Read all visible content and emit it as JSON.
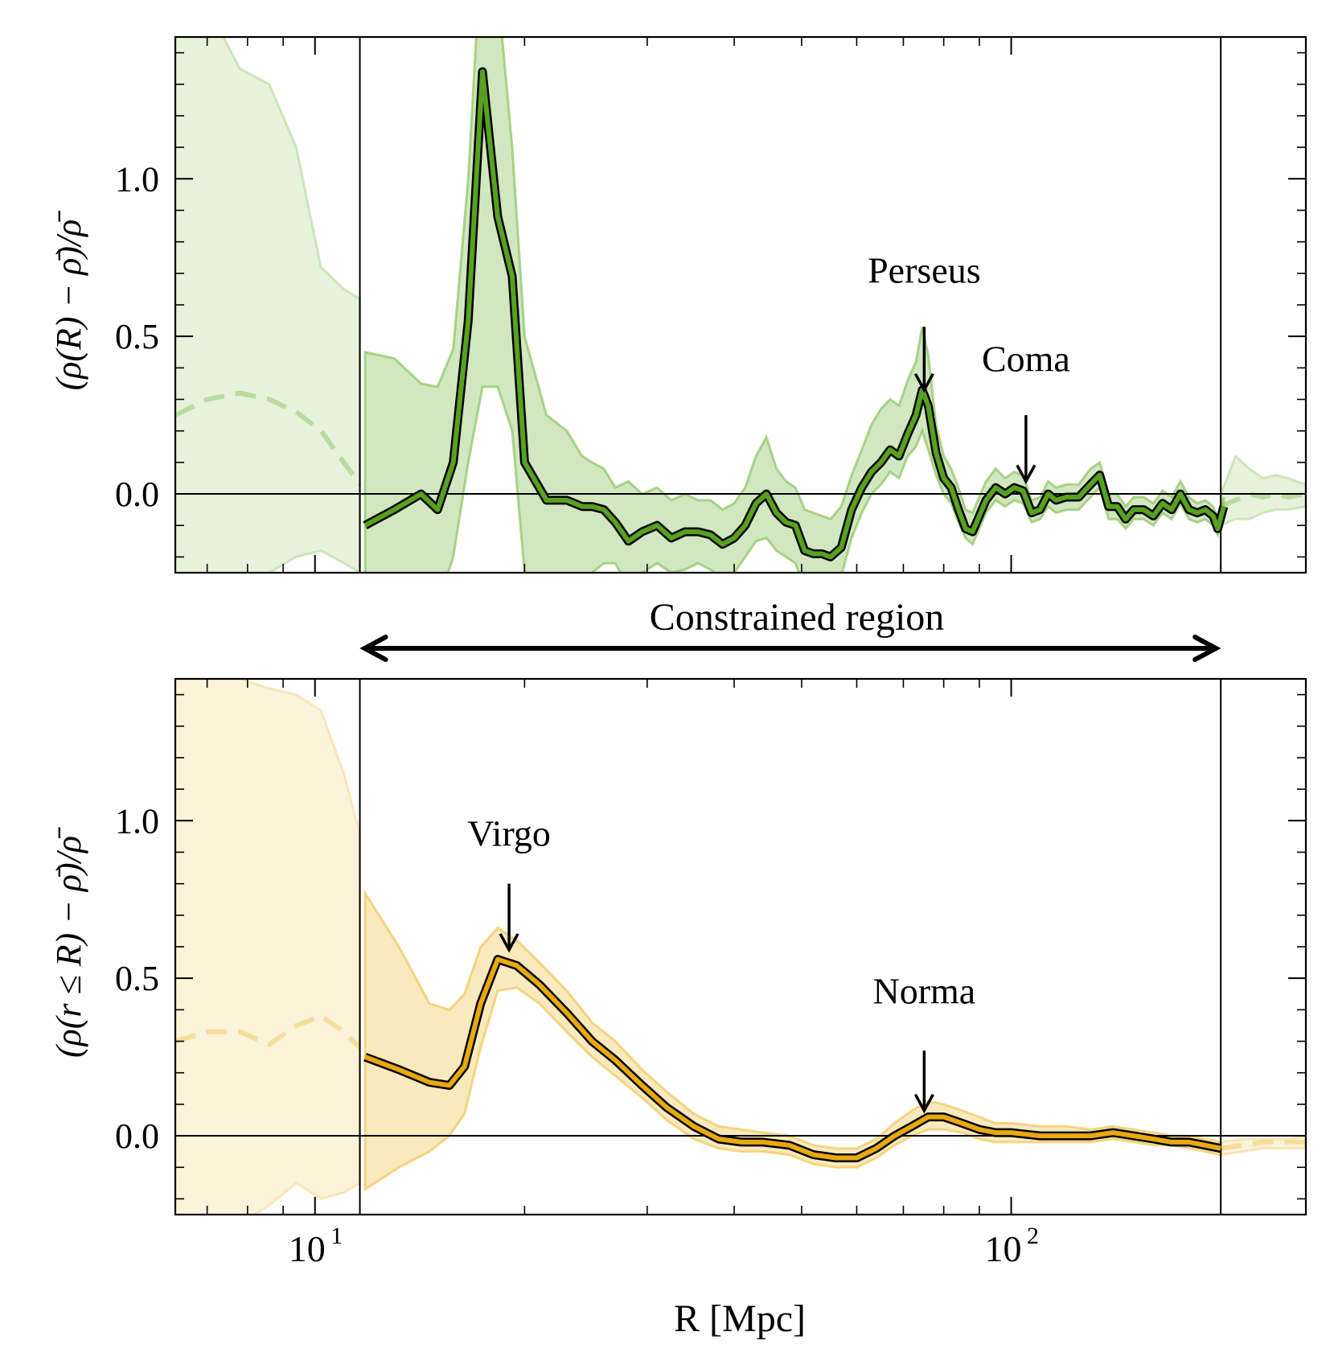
{
  "chart_data": [
    {
      "type": "line",
      "panel": "top",
      "ylabel": "(ρ(R) − ρ̄)/ρ̄",
      "xscale": "log",
      "xlim": [
        6.3,
        265
      ],
      "ylim": [
        -0.25,
        1.45
      ],
      "yticks": [
        0.0,
        0.5,
        1.0
      ],
      "ytick_labels": [
        "0.0",
        "0.5",
        "1.0"
      ],
      "hline": 0,
      "vlines": [
        11.6,
        200
      ],
      "color": "#57a11f",
      "band_color": "#8cc461",
      "series": [
        {
          "x": [
            11.8,
            13,
            14.2,
            15.0,
            15.8,
            16.6,
            17.4,
            18.3,
            19.2,
            20.0,
            21.5,
            23.0,
            24.2,
            25.0,
            26.0,
            27.0,
            28.2,
            29.5,
            31.0,
            32.5,
            34.0,
            35.5,
            37.0,
            38.5,
            40.0,
            41.5,
            43.0,
            44.5,
            46.0,
            47.5,
            49.0,
            50.5,
            52.0,
            53.5,
            55.0,
            57.0,
            59.0,
            61.0,
            63.0,
            65.0,
            67.0,
            69.0,
            71.0,
            73.0,
            74.5,
            76.0,
            78.0,
            80.0,
            82.0,
            84.0,
            86.0,
            88.0,
            90.0,
            92.0,
            95.0,
            98.0,
            101.0,
            104.0,
            107.0,
            110.0,
            113.0,
            116.0,
            120.0,
            125.0,
            130.0,
            134.0,
            138.0,
            142.0,
            146.0,
            150.0,
            155.0,
            160.0,
            165.0,
            170.0,
            175.0,
            180.0,
            185.0,
            190.0,
            195.0,
            198.0,
            202.0
          ],
          "y": [
            -0.1,
            -0.05,
            0.0,
            -0.05,
            0.1,
            0.55,
            1.34,
            0.88,
            0.69,
            0.1,
            -0.02,
            -0.02,
            -0.04,
            -0.04,
            -0.05,
            -0.09,
            -0.15,
            -0.12,
            -0.1,
            -0.14,
            -0.12,
            -0.12,
            -0.13,
            -0.16,
            -0.14,
            -0.1,
            -0.03,
            0.0,
            -0.06,
            -0.09,
            -0.1,
            -0.18,
            -0.19,
            -0.19,
            -0.2,
            -0.17,
            -0.05,
            0.02,
            0.07,
            0.1,
            0.14,
            0.12,
            0.19,
            0.25,
            0.33,
            0.28,
            0.13,
            0.05,
            0.02,
            -0.05,
            -0.11,
            -0.12,
            -0.07,
            -0.02,
            0.02,
            0.0,
            0.02,
            0.01,
            -0.06,
            -0.05,
            0.0,
            -0.02,
            -0.01,
            -0.01,
            0.03,
            0.06,
            -0.04,
            -0.04,
            -0.08,
            -0.05,
            -0.05,
            -0.07,
            -0.03,
            -0.05,
            0.0,
            -0.05,
            -0.06,
            -0.05,
            -0.07,
            -0.11,
            -0.04
          ],
          "band_upper": [
            0.45,
            0.43,
            0.35,
            0.34,
            0.46,
            1.0,
            1.8,
            1.6,
            1.1,
            0.5,
            0.25,
            0.2,
            0.12,
            0.1,
            0.08,
            0.02,
            0.04,
            0.0,
            0.02,
            -0.02,
            0.0,
            -0.02,
            -0.02,
            -0.05,
            -0.03,
            0.02,
            0.12,
            0.18,
            0.08,
            0.04,
            0.02,
            -0.05,
            -0.06,
            -0.07,
            -0.08,
            -0.04,
            0.06,
            0.14,
            0.22,
            0.27,
            0.3,
            0.28,
            0.36,
            0.42,
            0.53,
            0.44,
            0.22,
            0.12,
            0.08,
            0.02,
            -0.05,
            -0.06,
            -0.01,
            0.04,
            0.08,
            0.05,
            0.07,
            0.06,
            -0.02,
            -0.01,
            0.04,
            0.02,
            0.03,
            0.03,
            0.08,
            0.1,
            0.0,
            0.0,
            -0.04,
            -0.01,
            -0.01,
            -0.03,
            0.01,
            -0.01,
            0.04,
            -0.01,
            -0.03,
            -0.02,
            -0.04,
            -0.08,
            -0.01
          ],
          "band_lower": [
            -0.55,
            -0.5,
            -0.4,
            -0.35,
            -0.2,
            0.1,
            0.34,
            0.34,
            0.2,
            -0.25,
            -0.35,
            -0.35,
            -0.3,
            -0.25,
            -0.22,
            -0.22,
            -0.3,
            -0.25,
            -0.22,
            -0.25,
            -0.24,
            -0.22,
            -0.24,
            -0.27,
            -0.25,
            -0.2,
            -0.15,
            -0.14,
            -0.18,
            -0.2,
            -0.22,
            -0.3,
            -0.3,
            -0.3,
            -0.3,
            -0.26,
            -0.14,
            -0.06,
            0.0,
            0.03,
            0.07,
            0.05,
            0.12,
            0.15,
            0.2,
            0.14,
            0.06,
            0.0,
            -0.03,
            -0.09,
            -0.14,
            -0.16,
            -0.11,
            -0.06,
            -0.02,
            -0.04,
            -0.02,
            -0.03,
            -0.09,
            -0.08,
            -0.04,
            -0.06,
            -0.05,
            -0.05,
            -0.01,
            0.02,
            -0.08,
            -0.08,
            -0.11,
            -0.08,
            -0.08,
            -0.1,
            -0.06,
            -0.08,
            -0.03,
            -0.08,
            -0.09,
            -0.08,
            -0.1,
            -0.13,
            -0.07
          ]
        }
      ],
      "unconstrained_left": {
        "x": [
          6.3,
          7.0,
          7.8,
          8.6,
          9.4,
          10.2,
          11.0,
          11.6
        ],
        "y": [
          0.25,
          0.3,
          0.32,
          0.3,
          0.26,
          0.2,
          0.1,
          0.03
        ],
        "band_upper": [
          1.55,
          1.55,
          1.35,
          1.3,
          1.1,
          0.72,
          0.65,
          0.62
        ],
        "band_lower": [
          -0.4,
          -0.4,
          -0.35,
          -0.25,
          -0.2,
          -0.18,
          -0.22,
          -0.25
        ]
      },
      "unconstrained_right": {
        "x": [
          200,
          210,
          220,
          230,
          240,
          250,
          265
        ],
        "y": [
          -0.04,
          -0.02,
          0.0,
          -0.01,
          0.0,
          -0.01,
          0.0
        ],
        "band_upper": [
          0.0,
          0.12,
          0.08,
          0.05,
          0.06,
          0.05,
          0.03
        ],
        "band_lower": [
          -0.1,
          -0.08,
          -0.08,
          -0.06,
          -0.05,
          -0.05,
          -0.04
        ]
      },
      "annotations": [
        {
          "text": "Perseus",
          "x": 75,
          "y_text": 0.67,
          "arrow_from": 0.53,
          "arrow_to": 0.33
        },
        {
          "text": "Coma",
          "x": 105,
          "y_text": 0.39,
          "arrow_from": 0.25,
          "arrow_to": 0.04
        }
      ]
    },
    {
      "type": "line",
      "panel": "bottom",
      "ylabel": "(ρ(r ≤ R) − ρ̄)/ρ̄",
      "xlabel": "R [Mpc]",
      "xscale": "log",
      "xlim": [
        6.3,
        265
      ],
      "ylim": [
        -0.25,
        1.45
      ],
      "yticks": [
        0.0,
        0.5,
        1.0
      ],
      "ytick_labels": [
        "0.0",
        "0.5",
        "1.0"
      ],
      "xtick_labels": [
        {
          "base": "10",
          "exp": "1",
          "value": 10
        },
        {
          "base": "10",
          "exp": "2",
          "value": 100
        }
      ],
      "hline": 0,
      "vlines": [
        11.6,
        200
      ],
      "color": "#e8a90f",
      "band_color": "#f0c75a",
      "series": [
        {
          "x": [
            11.8,
            13.2,
            14.6,
            15.6,
            16.4,
            17.3,
            18.3,
            19.5,
            21,
            23,
            25,
            27,
            29.5,
            32,
            35,
            38,
            41,
            44,
            48,
            52,
            56,
            60,
            64,
            68,
            72,
            76,
            80,
            85,
            90,
            95,
            100,
            110,
            120,
            130,
            140,
            150,
            160,
            170,
            180,
            190,
            200
          ],
          "y": [
            0.25,
            0.21,
            0.17,
            0.16,
            0.22,
            0.42,
            0.56,
            0.54,
            0.48,
            0.39,
            0.3,
            0.24,
            0.16,
            0.09,
            0.03,
            -0.01,
            -0.02,
            -0.02,
            -0.03,
            -0.06,
            -0.07,
            -0.07,
            -0.04,
            0.0,
            0.03,
            0.06,
            0.06,
            0.04,
            0.02,
            0.01,
            0.01,
            0.0,
            0.0,
            0.0,
            0.01,
            0.0,
            -0.01,
            -0.02,
            -0.02,
            -0.03,
            -0.04
          ],
          "band_upper": [
            0.77,
            0.6,
            0.42,
            0.4,
            0.45,
            0.6,
            0.66,
            0.62,
            0.55,
            0.46,
            0.36,
            0.3,
            0.21,
            0.14,
            0.07,
            0.03,
            0.02,
            0.01,
            0.0,
            -0.03,
            -0.04,
            -0.04,
            -0.01,
            0.04,
            0.08,
            0.11,
            0.1,
            0.08,
            0.06,
            0.04,
            0.04,
            0.03,
            0.03,
            0.02,
            0.03,
            0.02,
            0.01,
            0.0,
            0.0,
            -0.01,
            -0.02
          ],
          "band_lower": [
            -0.17,
            -0.1,
            -0.05,
            0.0,
            0.07,
            0.28,
            0.46,
            0.47,
            0.42,
            0.33,
            0.25,
            0.19,
            0.12,
            0.05,
            -0.01,
            -0.04,
            -0.05,
            -0.05,
            -0.06,
            -0.09,
            -0.1,
            -0.1,
            -0.07,
            -0.03,
            0.0,
            0.02,
            0.02,
            0.01,
            -0.01,
            -0.02,
            -0.02,
            -0.02,
            -0.02,
            -0.02,
            -0.01,
            -0.02,
            -0.03,
            -0.03,
            -0.04,
            -0.05,
            -0.06
          ]
        }
      ],
      "unconstrained_left": {
        "x": [
          6.3,
          7.0,
          7.8,
          8.6,
          9.4,
          10.2,
          11.0,
          11.6
        ],
        "y": [
          0.3,
          0.33,
          0.33,
          0.29,
          0.35,
          0.38,
          0.33,
          0.28
        ],
        "band_upper": [
          1.55,
          1.5,
          1.45,
          1.42,
          1.4,
          1.35,
          1.15,
          0.96
        ],
        "band_lower": [
          -0.3,
          -0.3,
          -0.28,
          -0.22,
          -0.15,
          -0.2,
          -0.18,
          -0.15
        ]
      },
      "unconstrained_right": {
        "x": [
          200,
          215,
          230,
          250,
          265
        ],
        "y": [
          -0.04,
          -0.03,
          -0.02,
          -0.02,
          -0.02
        ],
        "band_upper": [
          -0.02,
          -0.01,
          -0.01,
          -0.01,
          0.0
        ],
        "band_lower": [
          -0.06,
          -0.05,
          -0.04,
          -0.04,
          -0.04
        ]
      },
      "annotations": [
        {
          "text": "Virgo",
          "x": 19,
          "y_text": 0.92,
          "arrow_from": 0.8,
          "arrow_to": 0.59
        },
        {
          "text": "Norma",
          "x": 75,
          "y_text": 0.42,
          "arrow_from": 0.27,
          "arrow_to": 0.08
        }
      ]
    }
  ],
  "constrained_region": {
    "label": "Constrained region",
    "x_from": 11.6,
    "x_to": 200
  }
}
